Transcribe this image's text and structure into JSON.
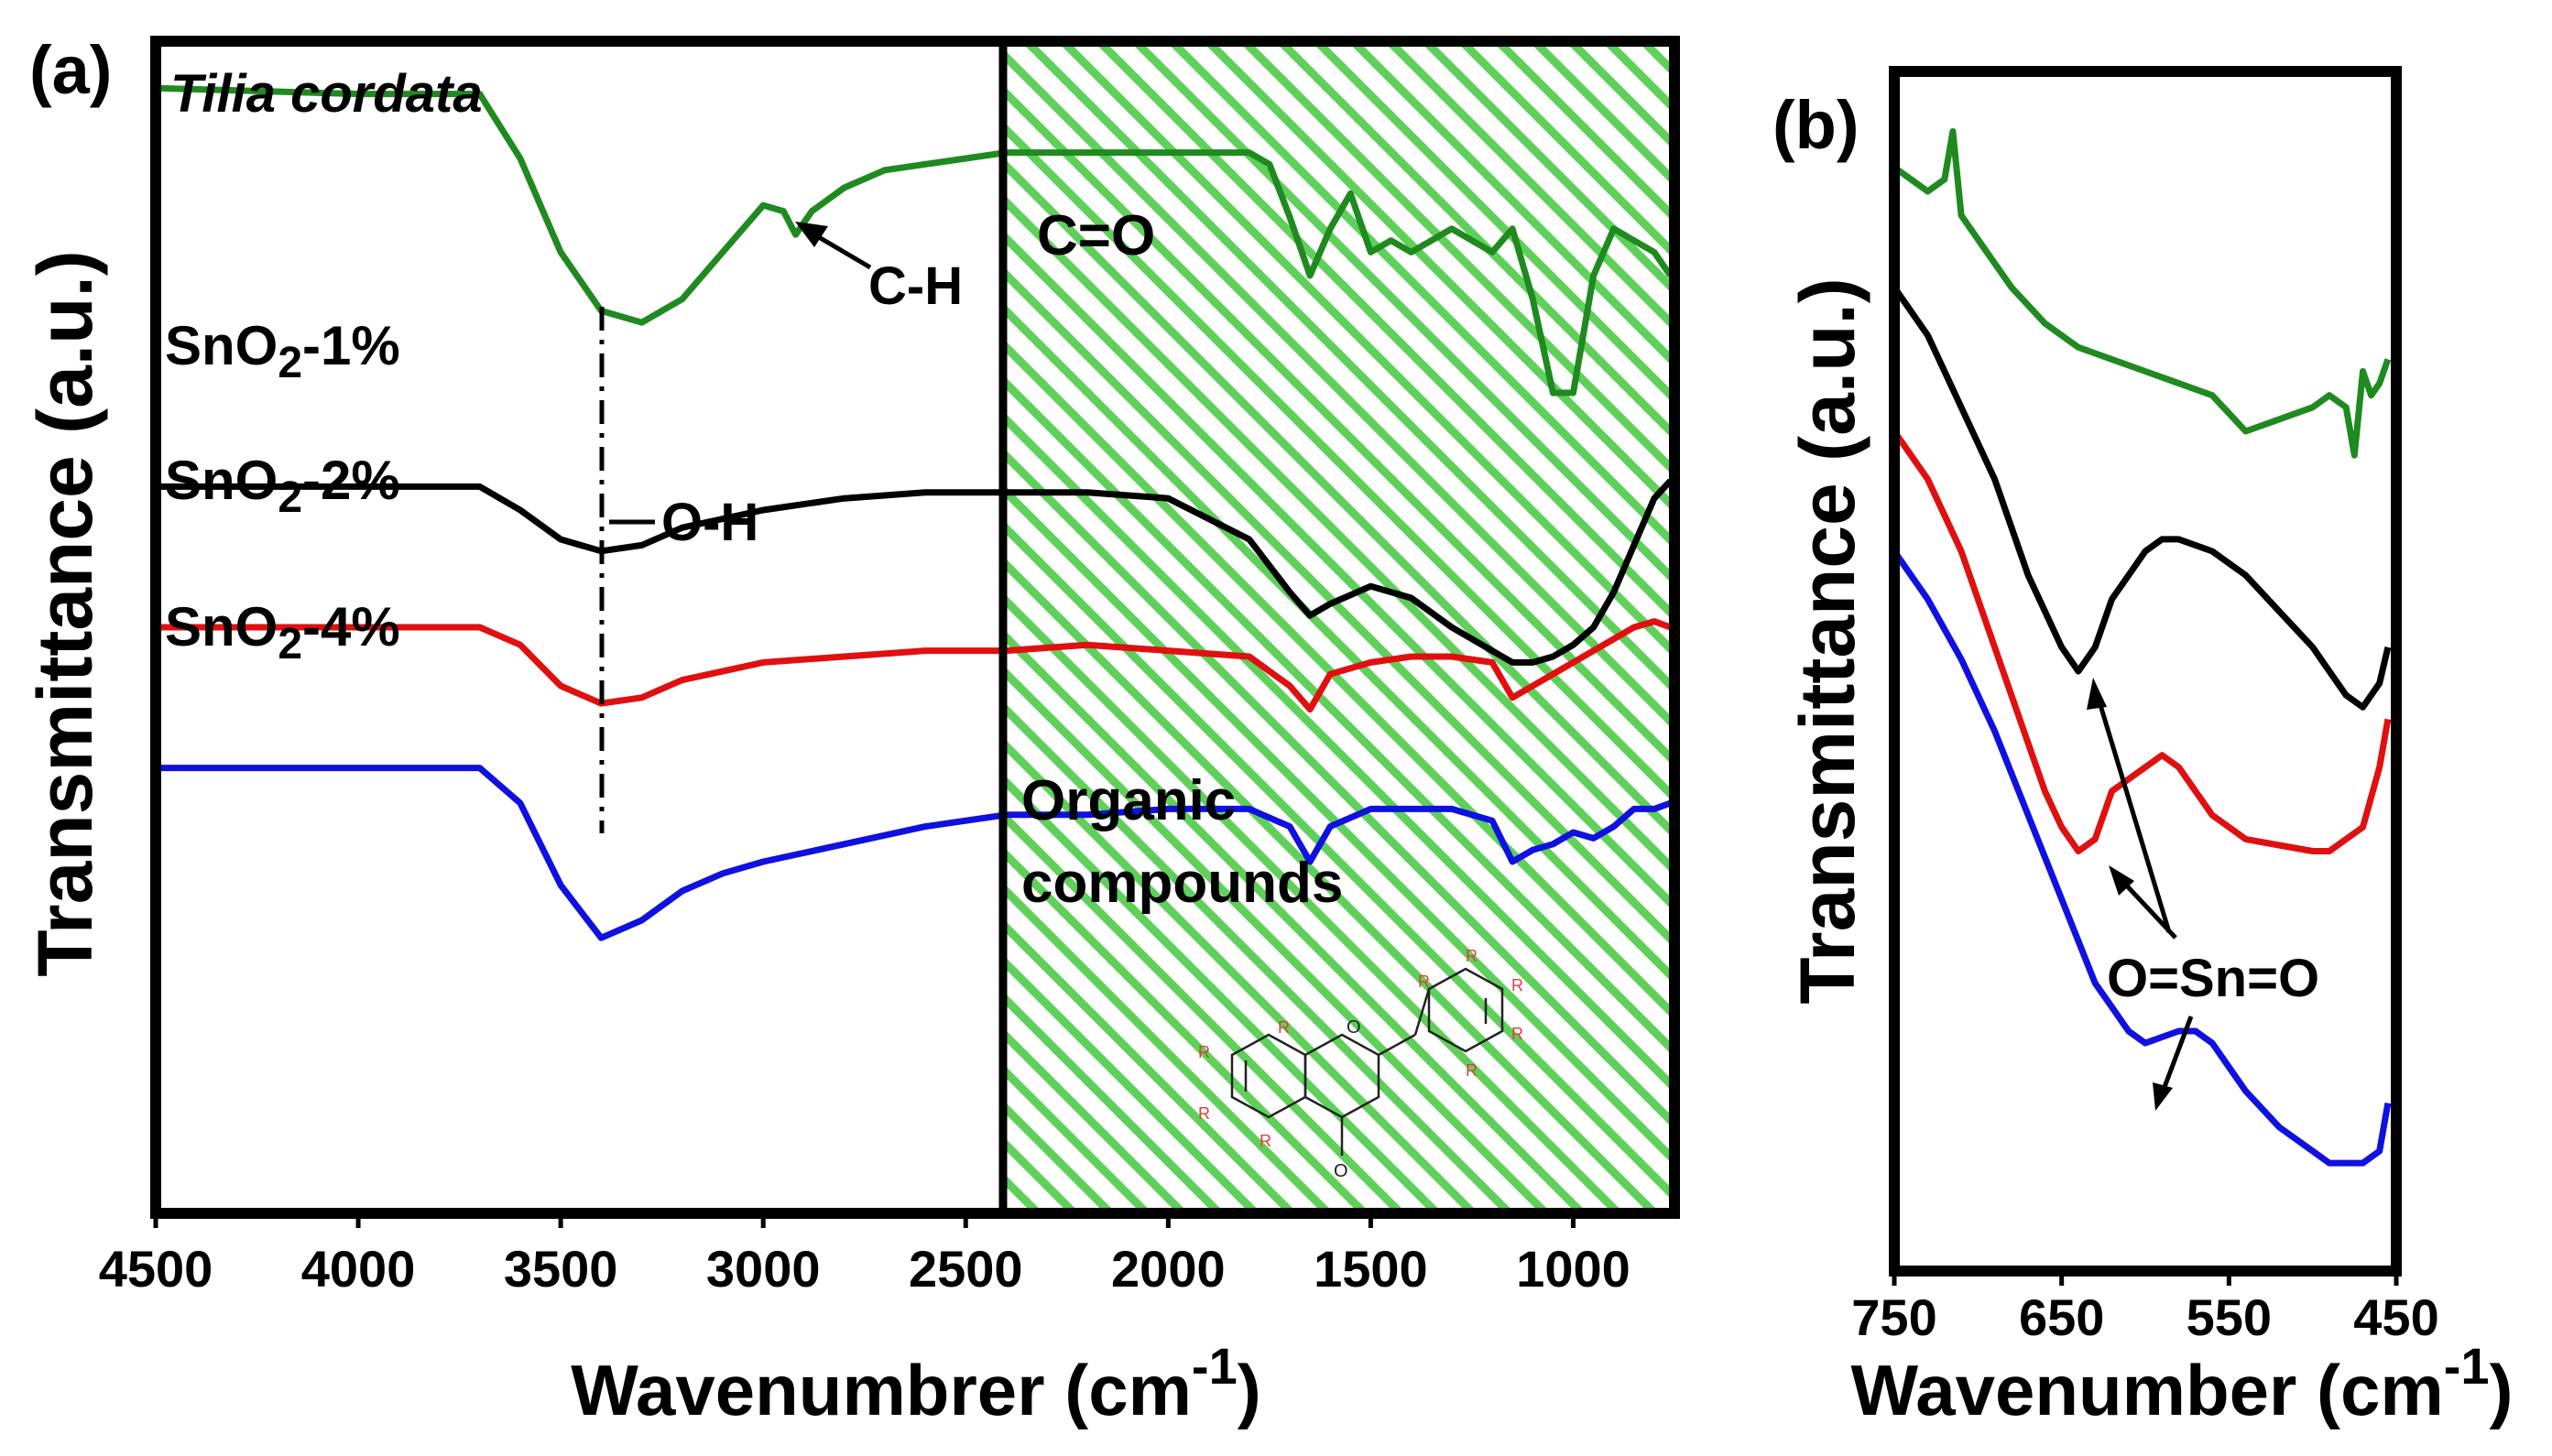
{
  "chart_data": [
    {
      "panel": "(a)",
      "type": "line",
      "xlabel": "Wavenumbrer (cm",
      "xlabel_sup": "-1",
      "xlabel_end": ")",
      "ylabel": "Transmittance (a.u.)",
      "xlim": [
        4500,
        750
      ],
      "x_ticks": [
        "4500",
        "4000",
        "3500",
        "3000",
        "2500",
        "2000",
        "1500",
        "1000"
      ],
      "series": [
        {
          "name": "Tilia cordata",
          "color": "#1f8a1f",
          "x": [
            4500,
            4000,
            3700,
            3600,
            3500,
            3400,
            3300,
            3200,
            3100,
            3000,
            2950,
            2920,
            2880,
            2800,
            2700,
            2600,
            2500,
            2400,
            2300,
            2200,
            2100,
            2000,
            1900,
            1800,
            1750,
            1700,
            1650,
            1600,
            1550,
            1500,
            1450,
            1400,
            1350,
            1300,
            1250,
            1200,
            1150,
            1100,
            1050,
            1000,
            950,
            900,
            850,
            800,
            760
          ],
          "y": [
            0.96,
            0.955,
            0.955,
            0.9,
            0.82,
            0.77,
            0.76,
            0.78,
            0.82,
            0.86,
            0.855,
            0.835,
            0.855,
            0.875,
            0.89,
            0.895,
            0.9,
            0.905,
            0.905,
            0.905,
            0.905,
            0.905,
            0.905,
            0.905,
            0.895,
            0.85,
            0.8,
            0.84,
            0.87,
            0.82,
            0.83,
            0.82,
            0.83,
            0.84,
            0.83,
            0.82,
            0.84,
            0.78,
            0.7,
            0.7,
            0.8,
            0.84,
            0.83,
            0.82,
            0.8
          ]
        },
        {
          "name": "SnO2-1%",
          "color": "#000000",
          "x": [
            4500,
            4000,
            3700,
            3600,
            3500,
            3400,
            3300,
            3200,
            3000,
            2800,
            2600,
            2400,
            2200,
            2000,
            1800,
            1700,
            1650,
            1600,
            1500,
            1400,
            1300,
            1200,
            1150,
            1100,
            1050,
            1000,
            950,
            900,
            850,
            800,
            760
          ],
          "y": [
            0.62,
            0.62,
            0.62,
            0.6,
            0.575,
            0.565,
            0.57,
            0.585,
            0.6,
            0.61,
            0.615,
            0.615,
            0.615,
            0.61,
            0.575,
            0.53,
            0.51,
            0.52,
            0.535,
            0.525,
            0.5,
            0.48,
            0.47,
            0.47,
            0.475,
            0.485,
            0.5,
            0.53,
            0.57,
            0.61,
            0.625
          ]
        },
        {
          "name": "SnO2-2%",
          "color": "#e01010",
          "x": [
            4500,
            4000,
            3700,
            3600,
            3500,
            3400,
            3300,
            3200,
            3000,
            2800,
            2600,
            2400,
            2200,
            2000,
            1800,
            1700,
            1650,
            1600,
            1500,
            1400,
            1300,
            1200,
            1150,
            1100,
            1050,
            1000,
            950,
            900,
            850,
            800,
            760
          ],
          "y": [
            0.5,
            0.5,
            0.5,
            0.485,
            0.45,
            0.435,
            0.44,
            0.455,
            0.47,
            0.475,
            0.48,
            0.48,
            0.485,
            0.48,
            0.475,
            0.45,
            0.43,
            0.46,
            0.47,
            0.475,
            0.475,
            0.47,
            0.44,
            0.45,
            0.46,
            0.47,
            0.48,
            0.49,
            0.5,
            0.505,
            0.5
          ]
        },
        {
          "name": "SnO2-4%",
          "color": "#1010e0",
          "x": [
            4500,
            4000,
            3700,
            3600,
            3500,
            3400,
            3300,
            3200,
            3100,
            3000,
            2800,
            2600,
            2400,
            2200,
            2000,
            1800,
            1700,
            1650,
            1600,
            1500,
            1400,
            1300,
            1200,
            1150,
            1100,
            1050,
            1000,
            950,
            900,
            850,
            800,
            760
          ],
          "y": [
            0.38,
            0.38,
            0.38,
            0.35,
            0.28,
            0.235,
            0.25,
            0.275,
            0.29,
            0.3,
            0.315,
            0.33,
            0.34,
            0.34,
            0.345,
            0.345,
            0.33,
            0.3,
            0.33,
            0.345,
            0.345,
            0.345,
            0.335,
            0.3,
            0.31,
            0.315,
            0.325,
            0.32,
            0.33,
            0.345,
            0.345,
            0.35
          ]
        }
      ],
      "series_labels": [
        {
          "main": "SnO",
          "sub": "2",
          "tail": "-1%"
        },
        {
          "main": "SnO",
          "sub": "2",
          "tail": "-2%"
        },
        {
          "main": "SnO",
          "sub": "2",
          "tail": "-4%"
        }
      ],
      "annotations": [
        "C-H",
        "C=O",
        "O-H",
        "Organic",
        "compounds"
      ],
      "shaded_region": {
        "from": 2400,
        "to": 750,
        "pattern": "green diagonal hatch"
      }
    },
    {
      "panel": "(b)",
      "type": "line",
      "xlabel": "Wavenumber (cm",
      "xlabel_sup": "-1",
      "xlabel_end": ")",
      "ylabel": "Transmittance (a.u.)",
      "xlim": [
        750,
        450
      ],
      "x_ticks": [
        "750",
        "650",
        "550",
        "450"
      ],
      "series": [
        {
          "name": "Tilia cordata",
          "color": "#1f8a1f",
          "x": [
            750,
            730,
            720,
            715,
            710,
            700,
            680,
            660,
            640,
            620,
            600,
            580,
            560,
            540,
            520,
            500,
            490,
            480,
            475,
            470,
            465,
            460,
            455
          ],
          "y": [
            0.92,
            0.9,
            0.91,
            0.95,
            0.88,
            0.86,
            0.82,
            0.79,
            0.77,
            0.76,
            0.75,
            0.74,
            0.73,
            0.7,
            0.71,
            0.72,
            0.73,
            0.72,
            0.68,
            0.75,
            0.73,
            0.74,
            0.76
          ]
        },
        {
          "name": "SnO2-1%",
          "color": "#000000",
          "x": [
            750,
            730,
            710,
            690,
            670,
            650,
            640,
            630,
            620,
            600,
            590,
            580,
            560,
            540,
            520,
            500,
            490,
            480,
            470,
            460,
            455
          ],
          "y": [
            0.82,
            0.78,
            0.72,
            0.66,
            0.58,
            0.52,
            0.5,
            0.52,
            0.56,
            0.6,
            0.61,
            0.61,
            0.6,
            0.58,
            0.55,
            0.52,
            0.5,
            0.48,
            0.47,
            0.49,
            0.52
          ]
        },
        {
          "name": "SnO2-2%",
          "color": "#e01010",
          "x": [
            750,
            730,
            710,
            690,
            670,
            660,
            650,
            640,
            630,
            620,
            600,
            590,
            580,
            560,
            540,
            520,
            500,
            490,
            480,
            470,
            460,
            455
          ],
          "y": [
            0.7,
            0.66,
            0.6,
            0.52,
            0.44,
            0.4,
            0.37,
            0.35,
            0.36,
            0.4,
            0.42,
            0.43,
            0.42,
            0.38,
            0.36,
            0.355,
            0.35,
            0.35,
            0.36,
            0.37,
            0.42,
            0.46
          ]
        },
        {
          "name": "SnO2-4%",
          "color": "#1010e0",
          "x": [
            750,
            730,
            710,
            690,
            670,
            650,
            630,
            620,
            610,
            600,
            590,
            580,
            570,
            560,
            550,
            540,
            520,
            500,
            490,
            480,
            470,
            460,
            455
          ],
          "y": [
            0.6,
            0.56,
            0.51,
            0.45,
            0.38,
            0.31,
            0.24,
            0.22,
            0.2,
            0.19,
            0.195,
            0.2,
            0.2,
            0.19,
            0.17,
            0.15,
            0.12,
            0.1,
            0.09,
            0.09,
            0.09,
            0.1,
            0.14
          ]
        }
      ],
      "annotations": [
        "O=Sn=O"
      ]
    }
  ],
  "panel_a": {
    "label": "(a)",
    "title": "Tilia cordata"
  },
  "panel_b": {
    "label": "(b)"
  }
}
